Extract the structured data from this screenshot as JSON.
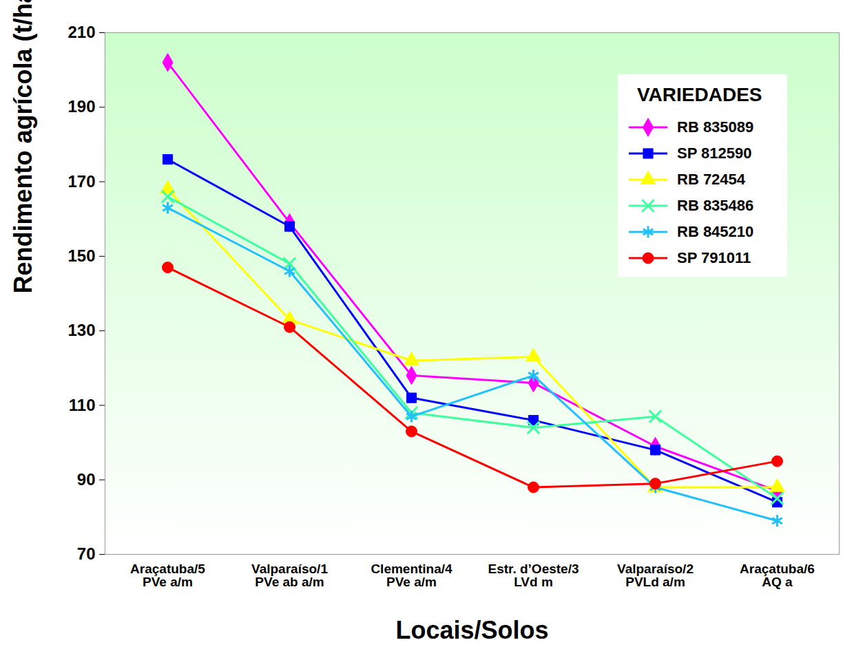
{
  "chart_data": {
    "type": "line",
    "x_label": "Locais/Solos",
    "y_label": "Rendimento agrícola (t/ha)",
    "categories": [
      "Araçatuba/5\nPVe a/m",
      "Valparaíso/1\nPVe ab a/m",
      "Clementina/4\nPVe a/m",
      "Estr. d’Oeste/3\nLVd m",
      "Valparaíso/2\nPVLd a/m",
      "Araçatuba/6\nAQ a"
    ],
    "ylim": [
      70,
      210
    ],
    "yticks": [
      70,
      90,
      110,
      130,
      150,
      170,
      190,
      210
    ],
    "grid": false,
    "legend": "top-right",
    "legend_title": "VARIEDADES",
    "series": [
      {
        "name": "RB 835089",
        "color": "#ff00ff",
        "marker": "diamond",
        "values": [
          202,
          159,
          118,
          116,
          99,
          87
        ]
      },
      {
        "name": "SP 812590",
        "color": "#0000ff",
        "marker": "square",
        "values": [
          176,
          158,
          112,
          106,
          98,
          84
        ]
      },
      {
        "name": "RB 72454",
        "color": "#ffff00",
        "marker": "triangle",
        "values": [
          168,
          133,
          122,
          123,
          88,
          88
        ]
      },
      {
        "name": "RB 835486",
        "color": "#40ffa0",
        "marker": "times",
        "values": [
          166,
          148,
          108,
          104,
          107,
          85
        ]
      },
      {
        "name": "RB 845210",
        "color": "#20c0ff",
        "marker": "asterisk",
        "values": [
          163,
          146,
          107,
          118,
          88,
          79
        ]
      },
      {
        "name": "SP 791011",
        "color": "#ff0000",
        "marker": "circle",
        "values": [
          147,
          131,
          103,
          88,
          89,
          95
        ]
      }
    ]
  }
}
